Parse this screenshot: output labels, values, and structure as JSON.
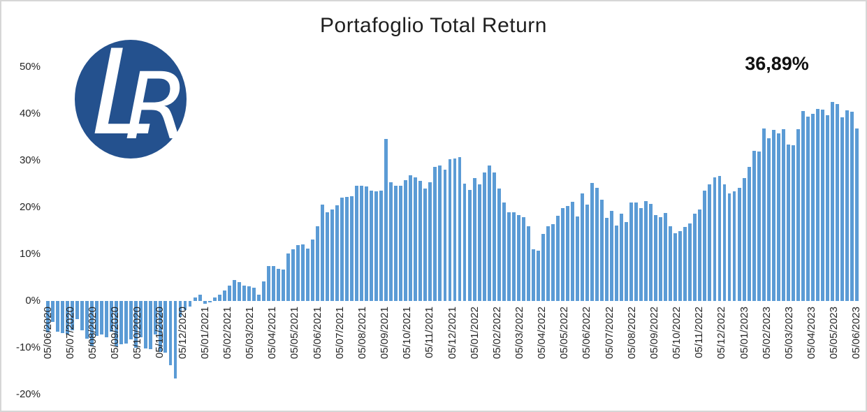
{
  "title": "Portafoglio Total Return",
  "annotation": {
    "final_return": "36,89%"
  },
  "logo": {
    "letters": {
      "l": "L",
      "r": "R"
    },
    "color": "#24518E",
    "letter_color": "#ffffff"
  },
  "y_axis": {
    "tick_labels": [
      "50%",
      "40%",
      "30%",
      "20%",
      "10%",
      "0%",
      "-10%",
      "-20%"
    ],
    "min": -20,
    "max": 50,
    "step": 10
  },
  "chart_data": {
    "type": "bar",
    "title": "Portafoglio Total Return",
    "bar_color": "#5B9BD5",
    "ylim": [
      -20,
      50
    ],
    "grid": false,
    "legend": false,
    "final_value_label": "36,89%",
    "x_tick_labels": [
      "05/06/2020",
      "05/07/2020",
      "05/08/2020",
      "05/09/2020",
      "05/10/2020",
      "05/11/2020",
      "05/12/2020",
      "05/01/2021",
      "05/02/2021",
      "05/03/2021",
      "05/04/2021",
      "05/05/2021",
      "05/06/2021",
      "05/07/2021",
      "05/08/2021",
      "05/09/2021",
      "05/10/2021",
      "05/11/2021",
      "05/12/2021",
      "05/01/2022",
      "05/02/2022",
      "05/03/2022",
      "05/04/2022",
      "05/05/2022",
      "05/06/2022",
      "05/07/2022",
      "05/08/2022",
      "05/09/2022",
      "05/10/2022",
      "05/11/2022",
      "05/12/2022",
      "05/01/2023",
      "05/02/2023",
      "05/03/2023",
      "05/04/2023",
      "05/05/2023",
      "05/06/2023"
    ],
    "values": [
      -6.7,
      -4.5,
      -6.6,
      -6.8,
      -7.2,
      -6.3,
      -3.9,
      -6.2,
      -8.1,
      -9.7,
      -7.5,
      -7.2,
      -7.7,
      -6.5,
      -9.7,
      -9.2,
      -9.1,
      -8.2,
      -10.0,
      -7.7,
      -10.2,
      -10.3,
      -7.2,
      -10.9,
      -11.1,
      -13.7,
      -16.5,
      -3.5,
      -2.0,
      -1.2,
      0.7,
      1.4,
      -0.6,
      -0.3,
      0.8,
      1.3,
      2.2,
      3.3,
      4.5,
      4.0,
      3.3,
      3.2,
      2.9,
      1.4,
      4.2,
      7.4,
      7.4,
      6.9,
      6.7,
      10.1,
      11.1,
      11.9,
      12.1,
      11.2,
      13.1,
      15.9,
      20.6,
      19.0,
      19.6,
      20.4,
      22.1,
      22.3,
      22.4,
      24.6,
      24.7,
      24.5,
      23.6,
      23.5,
      23.6,
      34.7,
      25.4,
      24.7,
      24.6,
      25.8,
      26.9,
      26.4,
      25.7,
      24.0,
      25.4,
      28.6,
      28.9,
      28.1,
      30.3,
      30.5,
      30.7,
      25.1,
      23.7,
      26.2,
      25.0,
      27.5,
      29.0,
      27.4,
      24.0,
      21.1,
      18.9,
      18.9,
      18.4,
      17.9,
      16.0,
      11.0,
      10.7,
      14.3,
      15.9,
      16.4,
      18.2,
      19.9,
      20.3,
      21.2,
      18.0,
      23.0,
      20.6,
      25.2,
      24.2,
      21.6,
      17.8,
      19.3,
      16.1,
      18.6,
      16.9,
      21.1,
      21.0,
      19.8,
      21.3,
      20.7,
      18.4,
      17.9,
      18.8,
      16.0,
      14.5,
      14.9,
      15.8,
      16.5,
      18.7,
      19.6,
      23.6,
      25.0,
      26.4,
      26.7,
      25.0,
      23.0,
      23.5,
      24.2,
      26.2,
      28.7,
      32.1,
      31.9,
      36.8,
      34.8,
      36.6,
      35.8,
      36.7,
      33.4,
      33.3,
      36.7,
      40.6,
      39.4,
      40.0,
      41.0,
      40.9,
      39.7,
      42.5,
      42.1,
      39.2,
      40.8,
      40.5,
      36.89
    ]
  }
}
